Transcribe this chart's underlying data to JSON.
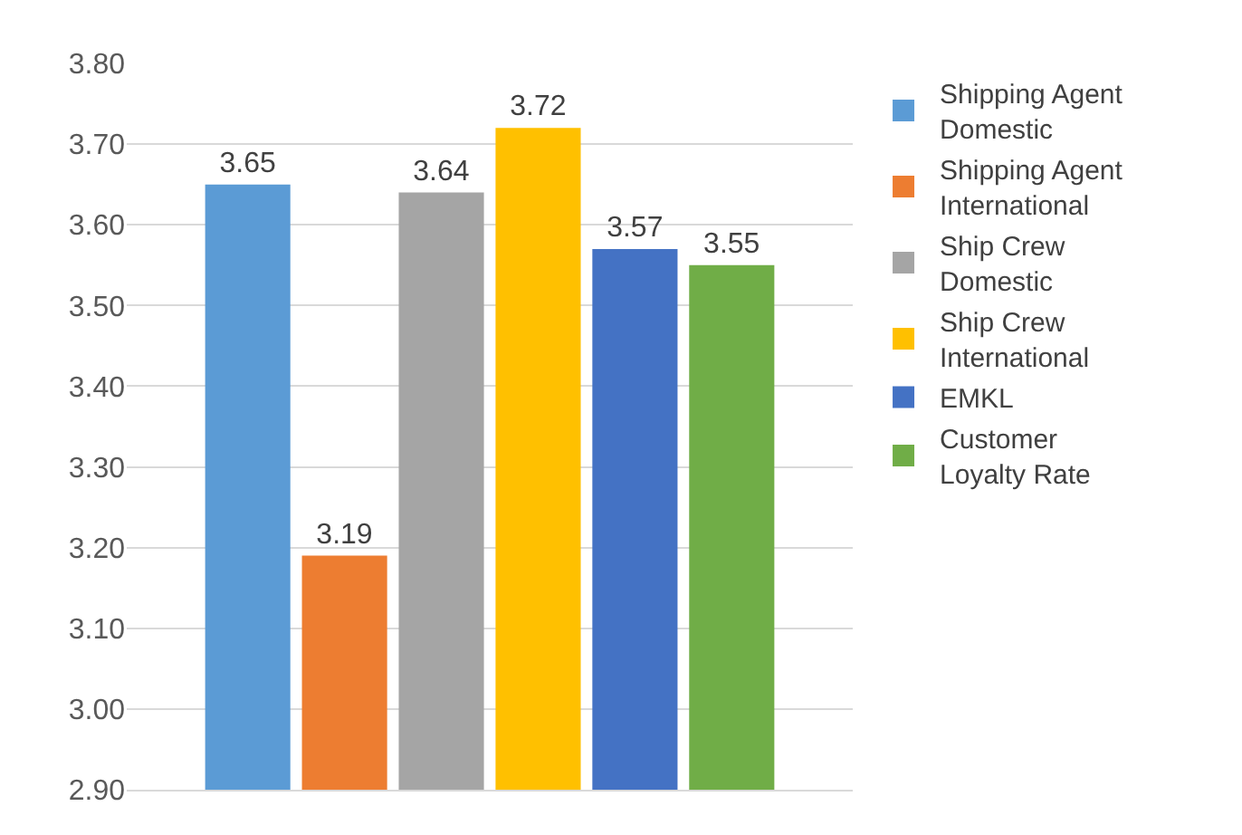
{
  "chart_data": {
    "type": "bar",
    "categories": [
      null
    ],
    "series": [
      {
        "name": "Shipping Agent Domestic",
        "color": "#5b9bd5",
        "values": [
          3.65
        ]
      },
      {
        "name": "Shipping Agent International",
        "color": "#ed7d31",
        "values": [
          3.19
        ]
      },
      {
        "name": "Ship Crew Domestic",
        "color": "#a5a5a5",
        "values": [
          3.64
        ]
      },
      {
        "name": "Ship Crew International",
        "color": "#ffc000",
        "values": [
          3.72
        ]
      },
      {
        "name": "EMKL",
        "color": "#4472c4",
        "values": [
          3.57
        ]
      },
      {
        "name": "Customer Loyalty Rate",
        "color": "#70ad47",
        "values": [
          3.55
        ]
      }
    ],
    "ylim": [
      2.9,
      3.8
    ],
    "yticks": [
      {
        "value": 2.9,
        "label": "2.90"
      },
      {
        "value": 3.0,
        "label": "3.00"
      },
      {
        "value": 3.1,
        "label": "3.10"
      },
      {
        "value": 3.2,
        "label": "3.20"
      },
      {
        "value": 3.3,
        "label": "3.30"
      },
      {
        "value": 3.4,
        "label": "3.40"
      },
      {
        "value": 3.5,
        "label": "3.50"
      },
      {
        "value": 3.6,
        "label": "3.60"
      },
      {
        "value": 3.7,
        "label": "3.70"
      },
      {
        "value": 3.8,
        "label": "3.80"
      }
    ],
    "grid": true,
    "legend": "right",
    "data_labels": true
  }
}
